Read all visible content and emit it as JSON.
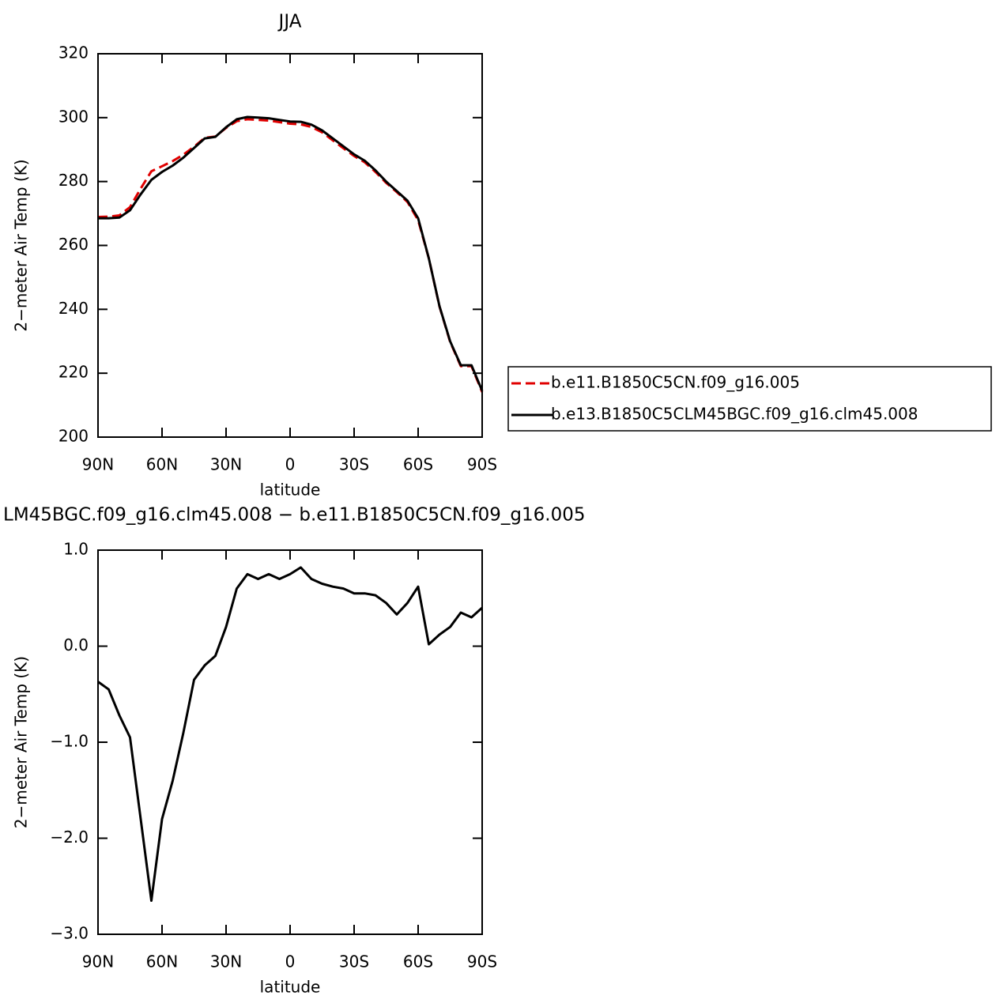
{
  "chart_data": [
    {
      "type": "line",
      "title": "JJA",
      "ylabel": "2−meter Air Temp (K)",
      "xlabel": "latitude",
      "x": [
        90,
        85,
        80,
        75,
        70,
        65,
        60,
        55,
        50,
        45,
        40,
        35,
        30,
        25,
        20,
        15,
        10,
        5,
        0,
        -5,
        -10,
        -15,
        -20,
        -25,
        -30,
        -35,
        -40,
        -45,
        -50,
        -55,
        -60,
        -65,
        -70,
        -75,
        -80,
        -85,
        -90
      ],
      "xlim": [
        90,
        -90
      ],
      "xticks": [
        {
          "value": 90,
          "label": "90N"
        },
        {
          "value": 60,
          "label": "60N"
        },
        {
          "value": 30,
          "label": "30N"
        },
        0,
        {
          "value": -30,
          "label": "30S"
        },
        {
          "value": -60,
          "label": "60S"
        },
        {
          "value": -90,
          "label": "90S"
        }
      ],
      "ylim": [
        200,
        320
      ],
      "yticks": [
        200,
        220,
        240,
        260,
        280,
        300,
        320
      ],
      "legend": "right",
      "series": [
        {
          "name": "b.e11.B1850C5CN.f09_g16.005",
          "color": "#e00000",
          "dash": "dashed",
          "values": [
            268.9,
            269.0,
            269.4,
            272,
            277.8,
            283.2,
            284.8,
            286.4,
            288.4,
            290.9,
            293.7,
            294.1,
            296.8,
            298.9,
            299.5,
            299.3,
            299.1,
            298.6,
            298.1,
            297.9,
            297.1,
            295.4,
            292.9,
            290.4,
            288,
            286,
            283,
            279.6,
            276.7,
            273.6,
            267.9,
            256,
            240.9,
            229.8,
            222.2,
            222.2,
            214.1
          ]
        },
        {
          "name": "b.e13.B1850C5CLM45BGC.f09_g16.clm45.008",
          "color": "#000000",
          "dash": "solid",
          "values": [
            268.5,
            268.5,
            268.7,
            271,
            276,
            280.5,
            283,
            285,
            287.5,
            290.5,
            293.5,
            294,
            297,
            299.5,
            300.2,
            300,
            299.8,
            299.3,
            298.8,
            298.7,
            297.8,
            296,
            293.5,
            291,
            288.5,
            286.5,
            283.5,
            280,
            277,
            274,
            268.5,
            256,
            241,
            230,
            222.5,
            222.5,
            214.5
          ]
        }
      ]
    },
    {
      "type": "line",
      "title": "LM45BGC.f09_g16.clm45.008 − b.e11.B1850C5CN.f09_g16.005",
      "ylabel": "2−meter Air Temp (K)",
      "xlabel": "latitude",
      "x": [
        90,
        85,
        80,
        75,
        70,
        65,
        60,
        55,
        50,
        45,
        40,
        35,
        30,
        25,
        20,
        15,
        10,
        5,
        0,
        -5,
        -10,
        -15,
        -20,
        -25,
        -30,
        -35,
        -40,
        -45,
        -50,
        -55,
        -60,
        -65,
        -70,
        -75,
        -80,
        -85,
        -90
      ],
      "xlim": [
        90,
        -90
      ],
      "xticks": [
        {
          "value": 90,
          "label": "90N"
        },
        {
          "value": 60,
          "label": "60N"
        },
        {
          "value": 30,
          "label": "30N"
        },
        0,
        {
          "value": -30,
          "label": "30S"
        },
        {
          "value": -60,
          "label": "60S"
        },
        {
          "value": -90,
          "label": "90S"
        }
      ],
      "ylim": [
        -3,
        1
      ],
      "yticks": [
        {
          "value": -3,
          "label": "−3.0"
        },
        {
          "value": -2,
          "label": "−2.0"
        },
        {
          "value": -1,
          "label": "−1.0"
        },
        {
          "value": 0,
          "label": "0.0"
        },
        {
          "value": 1,
          "label": "1.0"
        }
      ],
      "series": [
        {
          "color": "#000000",
          "dash": "solid",
          "values": [
            -0.37,
            -0.45,
            -0.72,
            -0.95,
            -1.8,
            -2.65,
            -1.8,
            -1.4,
            -0.9,
            -0.35,
            -0.2,
            -0.1,
            0.2,
            0.6,
            0.75,
            0.7,
            0.75,
            0.7,
            0.75,
            0.82,
            0.7,
            0.65,
            0.62,
            0.6,
            0.55,
            0.55,
            0.53,
            0.45,
            0.33,
            0.45,
            0.62,
            0.02,
            0.12,
            0.2,
            0.35,
            0.3,
            0.4
          ]
        }
      ]
    }
  ]
}
